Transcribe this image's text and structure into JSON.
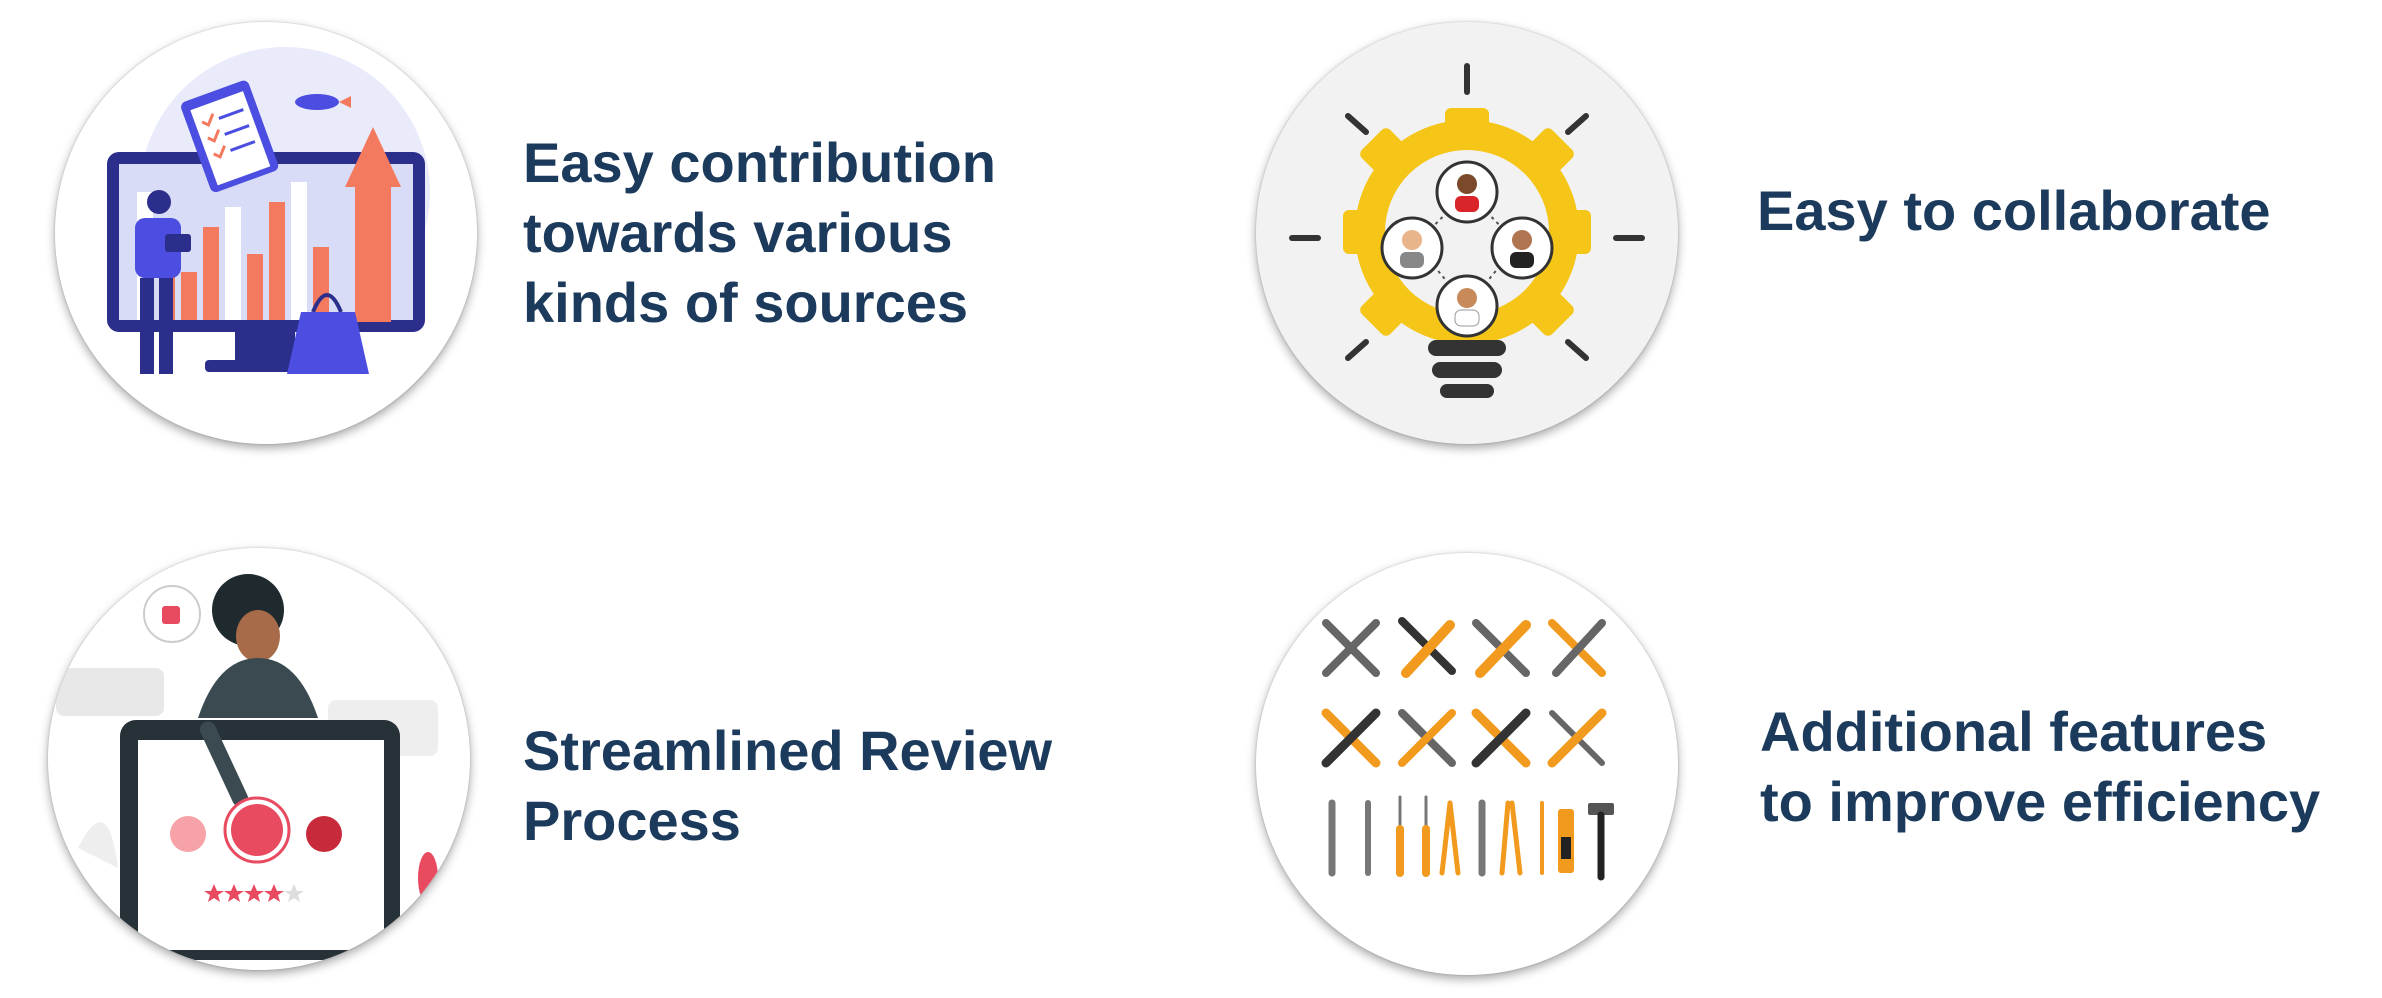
{
  "features": [
    {
      "title": "Easy contribution\ntowards various\nkinds of sources",
      "icon": "analytics-illustration-icon"
    },
    {
      "title": "Easy to collaborate",
      "icon": "team-lightbulb-icon"
    },
    {
      "title": "Streamlined Review\nProcess",
      "icon": "review-rating-illustration-icon"
    },
    {
      "title": "Additional features\nto improve efficiency",
      "icon": "tools-icon"
    }
  ],
  "colors": {
    "text": "#1b3a5c",
    "accent_orange": "#f47a5f",
    "accent_blue": "#4b4ee0",
    "accent_yellow": "#f5c518"
  }
}
